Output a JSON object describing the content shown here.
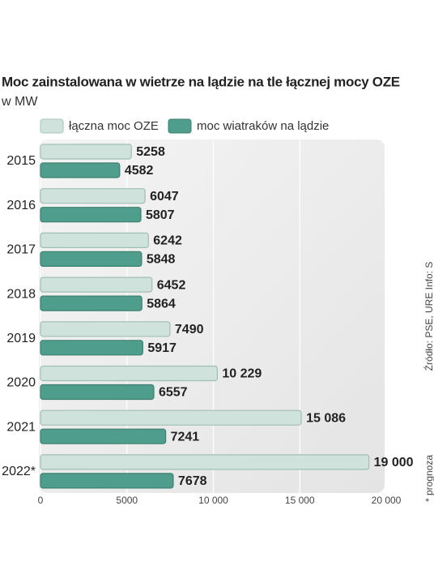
{
  "chart_data": {
    "type": "bar",
    "orientation": "horizontal",
    "title": "Moc zainstalowana w wietrze na lądzie na tle łącznej mocy OZE",
    "subtitle": "w MW",
    "source": "Źródło: PSE, URE  Info: S",
    "note": "* prognoza",
    "categories": [
      "2015",
      "2016",
      "2017",
      "2018",
      "2019",
      "2020",
      "2021",
      "2022*"
    ],
    "series": [
      {
        "name": "łączna moc OZE",
        "color": "#cfe3dc",
        "values": [
          5258,
          6047,
          6242,
          6452,
          7490,
          10229,
          15086,
          19000
        ],
        "value_labels": [
          "5258",
          "6047",
          "6242",
          "6452",
          "7490",
          "10 229",
          "15 086",
          "19 000"
        ]
      },
      {
        "name": "moc wiatraków na lądzie",
        "color": "#4e9d8d",
        "values": [
          4582,
          5807,
          5848,
          5864,
          5917,
          6557,
          7241,
          7678
        ]
      }
    ],
    "xlim": [
      0,
      20000
    ],
    "xticks": [
      0,
      5000,
      {
        "value": 10000,
        "label": "10 000"
      },
      {
        "value": 15000,
        "label": "15 000"
      },
      {
        "value": 20000,
        "label": "20 000"
      }
    ],
    "grid": true
  }
}
